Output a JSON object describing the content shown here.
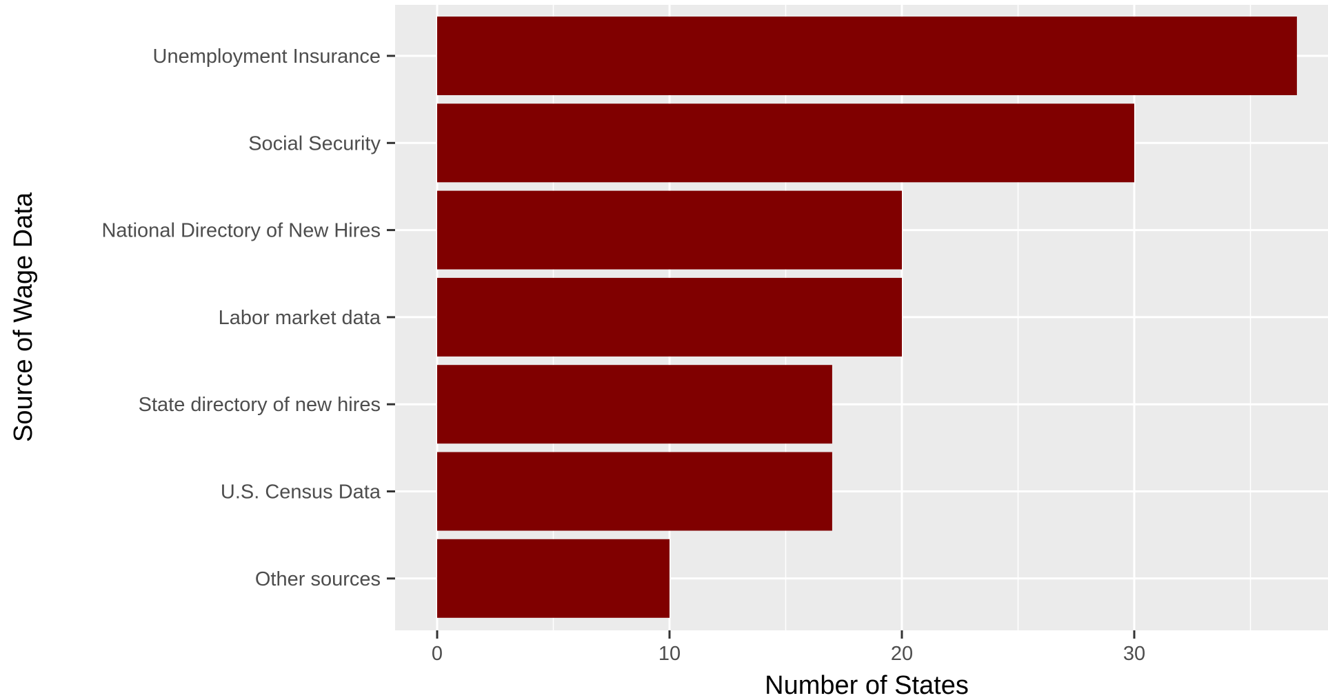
{
  "chart_data": {
    "type": "bar",
    "orientation": "horizontal",
    "title": "",
    "xlabel": "Number of States",
    "ylabel": "Source of Wage Data",
    "categories": [
      "Unemployment Insurance",
      "Social Security",
      "National Directory of New Hires",
      "Labor market data",
      "State directory of new hires",
      "U.S. Census Data",
      "Other sources"
    ],
    "values": [
      37,
      30,
      20,
      20,
      17,
      17,
      10
    ],
    "xlim": [
      -1.8,
      38.8
    ],
    "xticks": [
      0,
      10,
      20,
      30
    ],
    "xtick_labels": [
      "0",
      "10",
      "20",
      "30"
    ],
    "grid": true,
    "bar_color": "#800000",
    "panel_background": "#ebebeb",
    "grid_color": "#ffffff"
  }
}
